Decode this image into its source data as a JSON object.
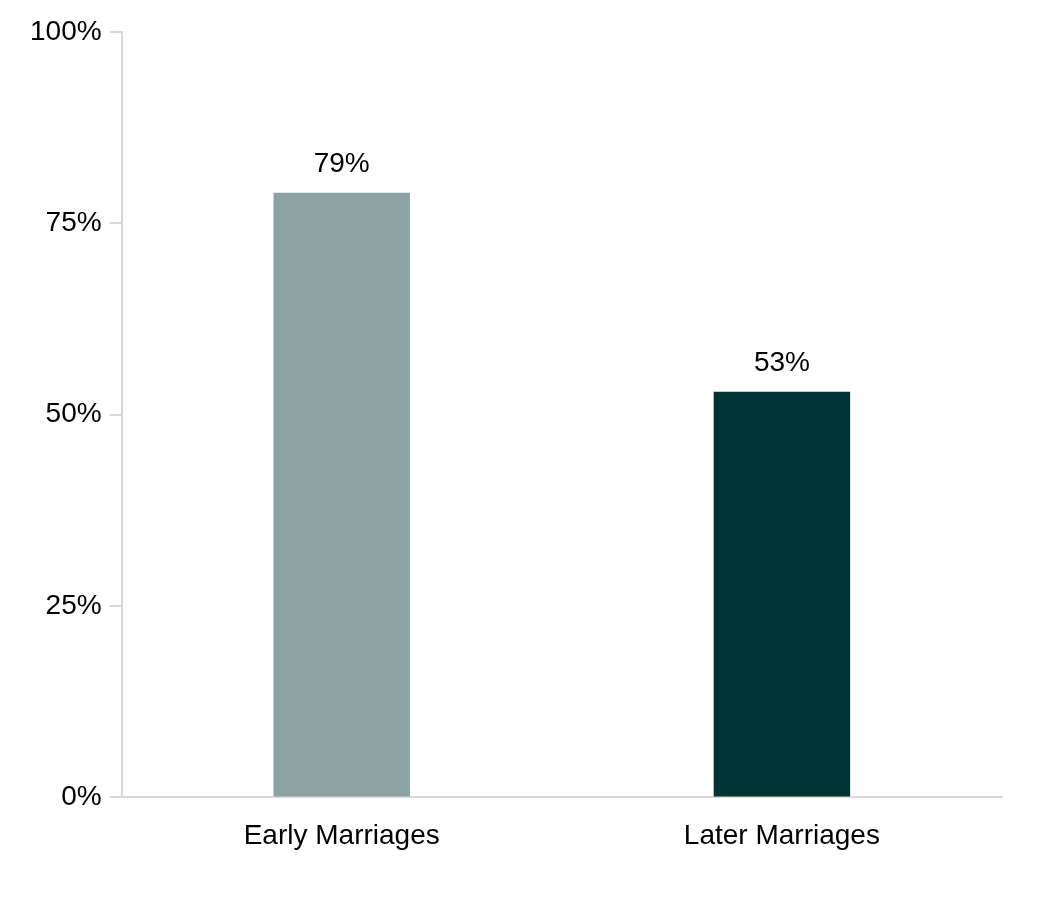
{
  "chart_data": {
    "type": "bar",
    "categories": [
      "Early Marriages",
      "Later Marriages"
    ],
    "values": [
      79,
      53
    ],
    "value_labels": [
      "79%",
      "53%"
    ],
    "colors": [
      "#8ca3a3",
      "#003333"
    ],
    "ylim": [
      0,
      100
    ],
    "yticks": [
      {
        "value": 0,
        "label": "0%"
      },
      {
        "value": 25,
        "label": "25%"
      },
      {
        "value": 50,
        "label": "50%"
      },
      {
        "value": 75,
        "label": "75%"
      },
      {
        "value": 100,
        "label": "100%"
      }
    ],
    "grid": false,
    "data_labels": true
  }
}
